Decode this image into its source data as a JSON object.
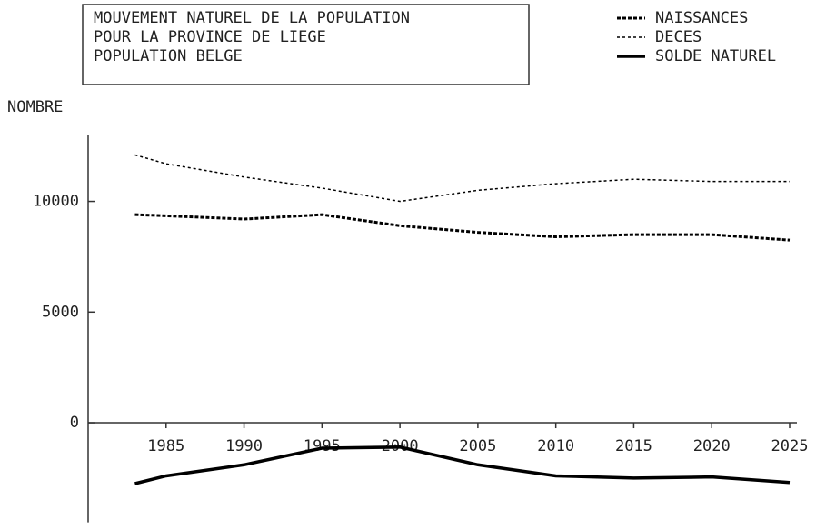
{
  "chart_data": {
    "type": "line",
    "title": [
      "MOUVEMENT NATUREL DE LA POPULATION",
      "POUR LA PROVINCE DE LIEGE",
      "POPULATION BELGE"
    ],
    "y_label": "NOMBRE",
    "x": [
      1983,
      1985,
      1990,
      1995,
      2000,
      2005,
      2010,
      2015,
      2020,
      2025
    ],
    "series": [
      {
        "name": "NAISSANCES",
        "color": "#000000",
        "style": "dashed-thick",
        "values": [
          9400,
          9350,
          9200,
          9400,
          8900,
          8600,
          8400,
          8500,
          8500,
          8250
        ]
      },
      {
        "name": "DECES",
        "color": "#000000",
        "style": "dashed-thin",
        "values": [
          12100,
          11700,
          11100,
          10600,
          10000,
          10500,
          10800,
          11000,
          10900,
          10900
        ]
      },
      {
        "name": "SOLDE NATUREL",
        "color": "#000000",
        "style": "solid-thick",
        "values": [
          -2750,
          -2400,
          -1900,
          -1150,
          -1100,
          -1900,
          -2400,
          -2500,
          -2450,
          -2700
        ]
      }
    ],
    "xlim": [
      1980,
      2025
    ],
    "xticks": [
      1985,
      1990,
      1995,
      2000,
      2005,
      2010,
      2015,
      2020,
      2025
    ],
    "ylim": [
      -4500,
      13000
    ],
    "yticks": [
      0,
      5000,
      10000
    ],
    "legend": "top-right"
  }
}
